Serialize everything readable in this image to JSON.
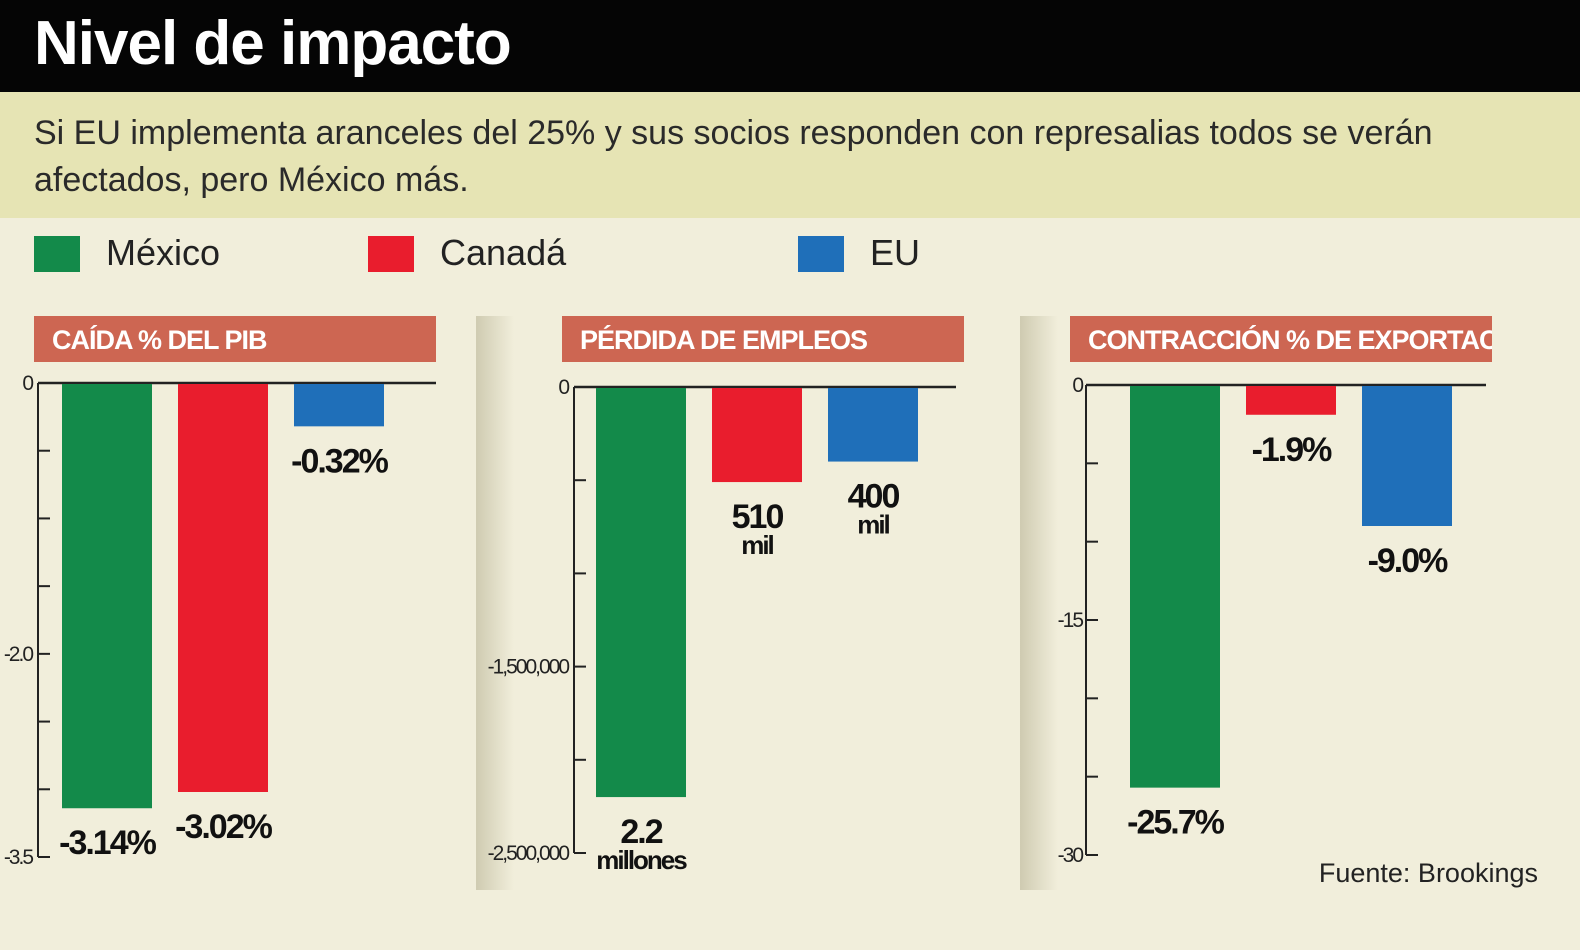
{
  "title": "Nivel de impacto",
  "subtitle": "Si EU implementa aranceles del 25% y sus socios responden con represalias todos se verán afectados, pero México más.",
  "legend": [
    {
      "label": "México",
      "color": "#138a4a"
    },
    {
      "label": "Canadá",
      "color": "#e91d2d"
    },
    {
      "label": "EU",
      "color": "#1f6fb9"
    }
  ],
  "source": "Fuente: Brookings",
  "chart_data": [
    {
      "type": "bar",
      "title": "CAÍDA % DEL PIB",
      "categories": [
        "México",
        "Canadá",
        "EU"
      ],
      "values": [
        -3.14,
        -3.02,
        -0.32
      ],
      "value_labels": [
        [
          "-3.14%"
        ],
        [
          "-3.02%"
        ],
        [
          "-0.32%"
        ]
      ],
      "ylim": [
        -3.5,
        0
      ],
      "tick_labels": [
        "0",
        "-2.0",
        "-3.5"
      ],
      "colors": [
        "#138a4a",
        "#e91d2d",
        "#1f6fb9"
      ]
    },
    {
      "type": "bar",
      "title": "PÉRDIDA DE EMPLEOS",
      "categories": [
        "México",
        "Canadá",
        "EU"
      ],
      "values": [
        -2200000,
        -510000,
        -400000
      ],
      "value_labels": [
        [
          "2.2",
          "millones"
        ],
        [
          "510",
          "mil"
        ],
        [
          "400",
          "mil"
        ]
      ],
      "ylim": [
        -2500000,
        0
      ],
      "tick_labels": [
        "0",
        "-1,500,000",
        "-2,500,000"
      ],
      "colors": [
        "#138a4a",
        "#e91d2d",
        "#1f6fb9"
      ]
    },
    {
      "type": "bar",
      "title": "CONTRACCIÓN % DE EXPORTACIONES",
      "categories": [
        "México",
        "Canadá",
        "EU"
      ],
      "values": [
        -25.7,
        -1.9,
        -9.0
      ],
      "value_labels": [
        [
          "-25.7%"
        ],
        [
          "-1.9%"
        ],
        [
          "-9.0%"
        ]
      ],
      "ylim": [
        -30,
        0
      ],
      "tick_labels": [
        "0",
        "-15",
        "-30"
      ],
      "colors": [
        "#138a4a",
        "#e91d2d",
        "#1f6fb9"
      ]
    }
  ]
}
